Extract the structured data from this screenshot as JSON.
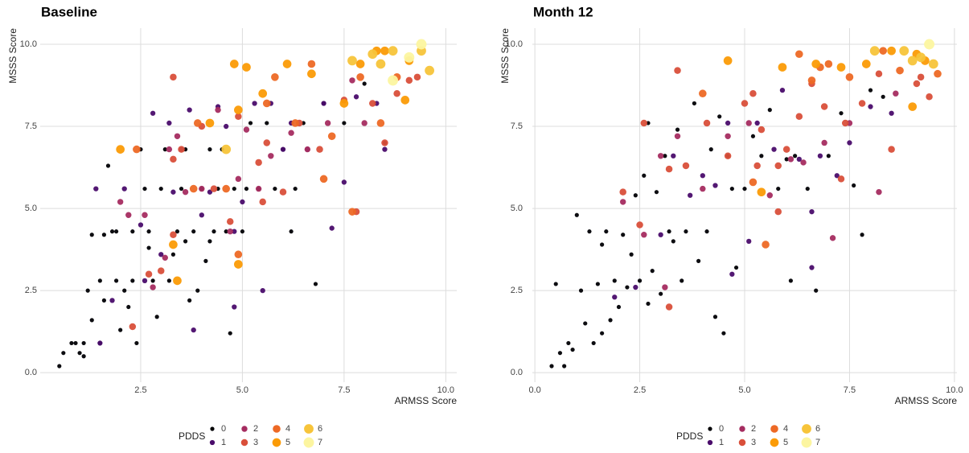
{
  "chart_data": [
    {
      "type": "scatter",
      "title": "Baseline",
      "xlabel": "ARMSS Score",
      "ylabel": "MSSS Score",
      "legend_title": "PDDS",
      "xlim": [
        0.03,
        10.27
      ],
      "ylim": [
        -0.29,
        10.49
      ],
      "xticks": [
        2.5,
        {
          "value": 5,
          "label": "5.0"
        },
        7.5,
        {
          "value": 10,
          "label": "10.0"
        }
      ],
      "yticks": [
        {
          "value": 0,
          "label": "0.0"
        },
        2.5,
        {
          "value": 5,
          "label": "5.0"
        },
        7.5,
        {
          "value": 10,
          "label": "10.0"
        }
      ],
      "grid": true,
      "legend": "bottom",
      "series": [
        {
          "name": "0",
          "color": "#000004",
          "x": [
            0.5,
            0.6,
            0.8,
            0.9,
            1.0,
            1.1,
            1.1,
            1.2,
            1.3,
            1.3,
            1.5,
            1.5,
            1.6,
            1.7,
            1.8,
            1.9,
            1.9,
            2.0,
            2.1,
            2.2,
            2.3,
            2.4,
            2.5,
            2.6,
            2.7,
            2.8,
            2.9,
            3.0,
            3.1,
            3.2,
            3.3,
            3.4,
            3.5,
            3.6,
            3.7,
            3.8,
            3.9,
            4.0,
            4.1,
            4.2,
            4.3,
            4.4,
            4.5,
            4.6,
            4.7,
            4.8,
            5.0,
            5.2,
            5.4,
            5.6,
            5.8,
            6.0,
            6.2,
            6.5,
            6.8,
            7.0,
            7.5,
            8.0,
            8.5,
            4.2,
            3.6,
            2.3,
            1.6,
            2.7,
            5.1,
            6.3
          ],
          "values": [
            0.2,
            0.6,
            0.9,
            0.9,
            0.6,
            0.9,
            0.5,
            2.5,
            1.6,
            4.2,
            2.8,
            0.9,
            2.2,
            6.3,
            4.3,
            4.3,
            2.8,
            1.3,
            2.5,
            2.0,
            2.8,
            0.9,
            6.8,
            5.6,
            4.3,
            2.8,
            1.7,
            5.6,
            6.8,
            2.8,
            3.6,
            4.3,
            5.6,
            6.8,
            2.2,
            4.3,
            2.5,
            5.6,
            3.4,
            6.8,
            4.3,
            5.6,
            6.8,
            4.3,
            1.2,
            5.6,
            4.3,
            7.6,
            5.6,
            7.6,
            5.6,
            6.8,
            4.3,
            7.6,
            2.7,
            8.2,
            7.6,
            8.8,
            7.0,
            4.0,
            4.0,
            4.3,
            4.2,
            3.8,
            5.6,
            5.6
          ]
        },
        {
          "name": "1",
          "color": "#4a0c6b",
          "x": [
            1.4,
            1.5,
            1.8,
            2.1,
            2.5,
            2.8,
            3.0,
            3.2,
            3.5,
            3.7,
            3.8,
            4.0,
            4.2,
            4.4,
            4.6,
            4.8,
            5.0,
            5.3,
            5.5,
            5.7,
            6.0,
            6.2,
            6.6,
            7.0,
            7.2,
            7.5,
            7.8,
            8.3,
            8.5,
            4.8,
            3.3,
            2.6
          ],
          "values": [
            5.6,
            0.9,
            2.2,
            5.6,
            4.5,
            7.9,
            3.6,
            7.6,
            6.8,
            8.0,
            1.3,
            4.8,
            5.5,
            8.1,
            7.5,
            2.0,
            5.2,
            8.2,
            2.5,
            8.2,
            6.8,
            7.6,
            6.8,
            8.2,
            4.4,
            5.8,
            8.4,
            8.2,
            6.8,
            4.3,
            5.5,
            2.8
          ]
        },
        {
          "name": "2",
          "color": "#a52c60",
          "x": [
            2.0,
            2.2,
            2.6,
            2.8,
            3.2,
            3.4,
            3.6,
            4.0,
            4.4,
            4.9,
            5.1,
            5.4,
            5.7,
            6.2,
            6.6,
            7.1,
            7.7,
            8.0,
            4.7,
            3.1
          ],
          "values": [
            5.2,
            4.8,
            4.8,
            2.6,
            6.8,
            7.2,
            5.5,
            5.6,
            8.0,
            5.9,
            7.4,
            5.6,
            6.6,
            7.3,
            6.8,
            7.6,
            8.9,
            7.6,
            4.3,
            3.5
          ]
        },
        {
          "name": "3",
          "color": "#d94f3a",
          "x": [
            2.3,
            2.7,
            3.0,
            3.3,
            3.3,
            3.5,
            4.0,
            4.3,
            4.7,
            4.9,
            5.4,
            5.6,
            6.0,
            6.4,
            6.9,
            7.5,
            7.8,
            8.5,
            8.8,
            9.1,
            9.3,
            8.2,
            3.3,
            5.5
          ],
          "values": [
            1.4,
            3.0,
            3.1,
            4.2,
            9.0,
            6.8,
            7.5,
            5.6,
            4.6,
            7.8,
            6.4,
            7.0,
            5.5,
            7.6,
            6.8,
            8.3,
            4.9,
            7.0,
            8.5,
            8.9,
            9.0,
            8.2,
            6.5,
            5.2
          ]
        },
        {
          "name": "4",
          "color": "#ed6925",
          "x": [
            2.4,
            3.8,
            4.6,
            4.9,
            5.6,
            5.8,
            6.3,
            6.7,
            7.0,
            7.2,
            7.7,
            7.9,
            8.4,
            8.8,
            3.9
          ],
          "values": [
            6.8,
            5.6,
            5.6,
            3.6,
            8.2,
            9.0,
            7.6,
            9.4,
            5.9,
            7.2,
            4.9,
            9.0,
            7.6,
            9.0,
            7.6
          ]
        },
        {
          "name": "5",
          "color": "#fb9b06",
          "x": [
            2.0,
            3.3,
            3.4,
            4.2,
            4.8,
            4.9,
            4.9,
            5.1,
            5.5,
            6.1,
            6.7,
            7.5,
            7.9,
            8.3,
            8.5,
            9.0,
            9.1
          ],
          "values": [
            6.8,
            3.9,
            2.8,
            7.6,
            9.4,
            3.3,
            8.0,
            9.3,
            8.5,
            9.4,
            9.1,
            8.2,
            9.4,
            9.8,
            9.8,
            8.3,
            9.5
          ]
        },
        {
          "name": "6",
          "color": "#f7c43a",
          "x": [
            8.2,
            8.7,
            9.4,
            9.6,
            8.4,
            7.7,
            4.6
          ],
          "values": [
            9.7,
            9.8,
            9.8,
            9.2,
            9.4,
            9.5,
            6.8
          ]
        },
        {
          "name": "7",
          "color": "#fcf5a0",
          "x": [
            9.4,
            8.7,
            9.1
          ],
          "values": [
            10.0,
            8.9,
            9.6
          ]
        }
      ]
    },
    {
      "type": "scatter",
      "title": "Month 12",
      "xlabel": "ARMSS Score",
      "ylabel": "MSSS Score",
      "legend_title": "PDDS",
      "xlim": [
        -0.06,
        10.06
      ],
      "ylim": [
        -0.29,
        10.49
      ],
      "xticks": [
        {
          "value": 0,
          "label": "0.0"
        },
        2.5,
        {
          "value": 5,
          "label": "5.0"
        },
        7.5,
        {
          "value": 10,
          "label": "10.0"
        }
      ],
      "yticks": [
        {
          "value": 0,
          "label": "0.0"
        },
        2.5,
        {
          "value": 5,
          "label": "5.0"
        },
        7.5,
        {
          "value": 10,
          "label": "10.0"
        }
      ],
      "grid": true,
      "legend": "bottom",
      "series": [
        {
          "name": "0",
          "color": "#000004",
          "x": [
            0.4,
            0.5,
            0.6,
            0.7,
            0.8,
            0.9,
            1.0,
            1.1,
            1.2,
            1.3,
            1.4,
            1.5,
            1.6,
            1.7,
            1.8,
            1.9,
            2.0,
            2.1,
            2.2,
            2.3,
            2.4,
            2.5,
            2.6,
            2.7,
            2.8,
            2.9,
            3.0,
            3.1,
            3.2,
            3.4,
            3.5,
            3.6,
            3.8,
            3.9,
            4.1,
            4.2,
            4.3,
            4.4,
            4.5,
            4.6,
            4.8,
            5.0,
            5.2,
            5.4,
            5.6,
            5.8,
            6.0,
            6.1,
            6.2,
            6.5,
            6.7,
            7.0,
            7.3,
            7.6,
            7.8,
            8.0,
            8.3,
            1.6,
            2.7,
            3.3,
            4.7
          ],
          "values": [
            0.2,
            2.7,
            0.6,
            0.2,
            0.9,
            0.7,
            4.8,
            2.5,
            1.5,
            4.3,
            0.9,
            2.7,
            3.9,
            4.3,
            1.6,
            2.8,
            2.0,
            4.2,
            2.6,
            3.6,
            5.4,
            2.8,
            6.0,
            7.6,
            3.1,
            5.5,
            2.4,
            6.6,
            4.3,
            7.4,
            2.8,
            4.3,
            8.2,
            3.4,
            4.3,
            6.8,
            1.7,
            7.8,
            1.2,
            6.6,
            3.2,
            5.6,
            7.2,
            6.6,
            8.0,
            5.6,
            6.5,
            2.8,
            6.6,
            5.6,
            2.5,
            6.6,
            7.9,
            5.7,
            4.2,
            8.6,
            8.4,
            1.2,
            2.1,
            4.0,
            5.6
          ]
        },
        {
          "name": "1",
          "color": "#4a0c6b",
          "x": [
            1.9,
            2.4,
            3.0,
            3.3,
            3.7,
            4.0,
            4.3,
            4.6,
            4.7,
            5.1,
            5.3,
            5.7,
            5.9,
            6.3,
            6.6,
            6.8,
            7.2,
            7.5,
            8.0,
            8.5,
            6.6
          ],
          "values": [
            2.3,
            2.6,
            4.2,
            6.6,
            5.4,
            6.0,
            5.7,
            7.6,
            3.0,
            4.0,
            7.6,
            6.8,
            8.6,
            6.5,
            3.2,
            6.6,
            6.0,
            7.0,
            8.1,
            7.9,
            4.9
          ]
        },
        {
          "name": "2",
          "color": "#a52c60",
          "x": [
            2.1,
            2.6,
            3.1,
            3.4,
            4.0,
            4.6,
            5.1,
            5.6,
            6.1,
            6.4,
            6.9,
            7.1,
            7.5,
            8.2,
            8.6,
            3.0
          ],
          "values": [
            5.2,
            4.2,
            2.6,
            7.2,
            5.6,
            7.2,
            7.6,
            5.4,
            6.5,
            6.4,
            7.0,
            4.1,
            7.6,
            5.5,
            8.5,
            6.6
          ]
        },
        {
          "name": "3",
          "color": "#d94f3a",
          "x": [
            2.1,
            2.5,
            2.6,
            3.2,
            3.2,
            3.4,
            3.6,
            4.1,
            4.6,
            5.0,
            5.2,
            5.4,
            5.8,
            5.8,
            6.0,
            6.3,
            6.6,
            6.9,
            7.3,
            7.4,
            7.8,
            8.2,
            8.5,
            9.2,
            9.4,
            9.1,
            5.3
          ],
          "values": [
            5.5,
            4.5,
            7.6,
            2.0,
            6.2,
            9.2,
            6.3,
            7.6,
            6.6,
            8.2,
            8.5,
            7.4,
            6.3,
            4.9,
            6.8,
            7.8,
            8.8,
            8.1,
            5.9,
            7.6,
            8.2,
            9.1,
            6.8,
            9.0,
            8.4,
            8.8,
            6.3
          ]
        },
        {
          "name": "4",
          "color": "#ed6925",
          "x": [
            4.0,
            5.5,
            6.3,
            6.6,
            7.0,
            7.5,
            8.3,
            8.7,
            9.6,
            5.2,
            6.8
          ],
          "values": [
            8.5,
            3.9,
            9.7,
            8.9,
            9.4,
            9.0,
            9.8,
            9.2,
            9.1,
            5.8,
            9.3
          ]
        },
        {
          "name": "5",
          "color": "#fb9b06",
          "x": [
            4.6,
            5.4,
            5.9,
            6.7,
            7.3,
            7.9,
            8.5,
            9.0,
            9.1,
            9.3
          ],
          "values": [
            9.5,
            5.5,
            9.3,
            9.4,
            9.3,
            9.4,
            9.8,
            8.1,
            9.7,
            9.5
          ]
        },
        {
          "name": "6",
          "color": "#f7c43a",
          "x": [
            8.1,
            8.8,
            9.2,
            9.5,
            9.0
          ],
          "values": [
            9.8,
            9.8,
            9.6,
            9.4,
            9.5
          ]
        },
        {
          "name": "7",
          "color": "#fcf5a0",
          "x": [
            9.4
          ],
          "values": [
            10.0
          ]
        }
      ]
    }
  ]
}
